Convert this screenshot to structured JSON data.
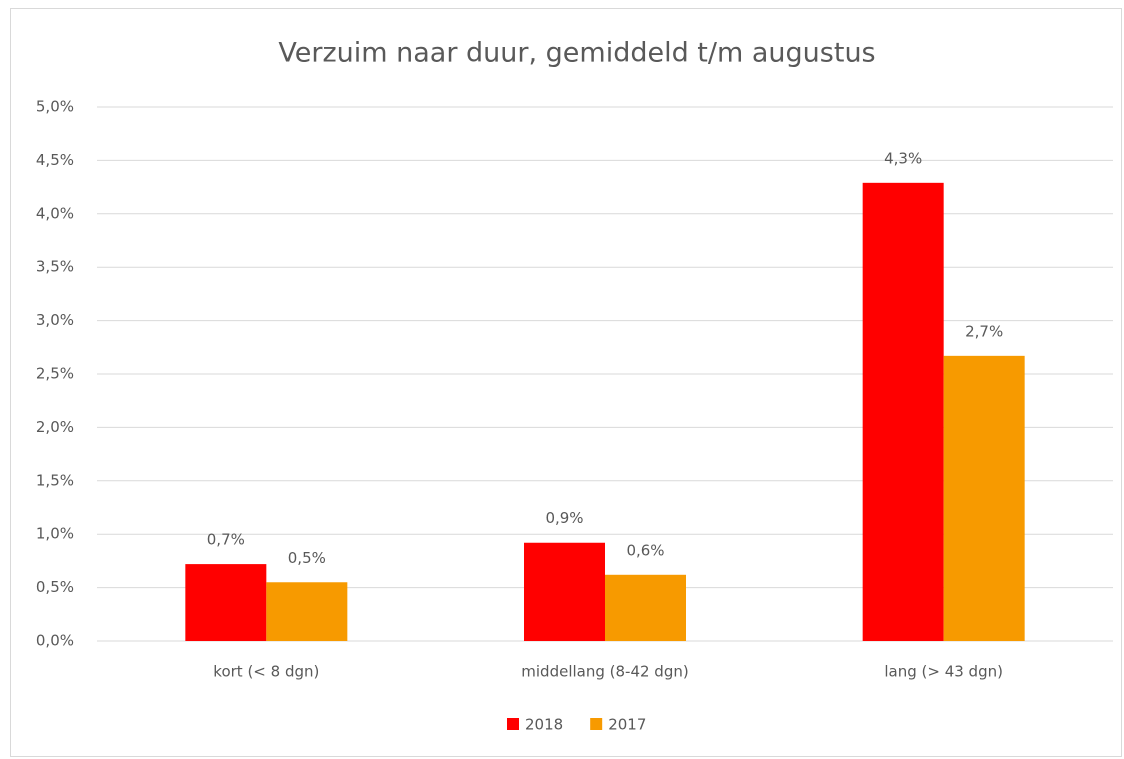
{
  "chart_data": {
    "type": "bar",
    "title": "Verzuim naar duur, gemiddeld t/m augustus",
    "categories": [
      "kort (< 8 dgn)",
      "middellang (8-42 dgn)",
      "lang (> 43 dgn)"
    ],
    "series": [
      {
        "name": "2018",
        "color": "#ff0000",
        "values": [
          0.72,
          0.92,
          4.29
        ],
        "value_labels": [
          "0,7%",
          "0,9%",
          "4,3%"
        ]
      },
      {
        "name": "2017",
        "color": "#f79a00",
        "values": [
          0.55,
          0.62,
          2.67
        ],
        "value_labels": [
          "0,5%",
          "0,6%",
          "2,7%"
        ]
      }
    ],
    "ylim": [
      0,
      5
    ],
    "yticks": [
      {
        "value": 0,
        "label": "0,0%"
      },
      {
        "value": 0.5,
        "label": "0,5%"
      },
      {
        "value": 1,
        "label": "1,0%"
      },
      {
        "value": 1.5,
        "label": "1,5%"
      },
      {
        "value": 2,
        "label": "2,0%"
      },
      {
        "value": 2.5,
        "label": "2,5%"
      },
      {
        "value": 3,
        "label": "3,0%"
      },
      {
        "value": 3.5,
        "label": "3,5%"
      },
      {
        "value": 4,
        "label": "4,0%"
      },
      {
        "value": 4.5,
        "label": "4,5%"
      },
      {
        "value": 5,
        "label": "5,0%"
      }
    ],
    "grid": true,
    "legend": "bottom"
  }
}
